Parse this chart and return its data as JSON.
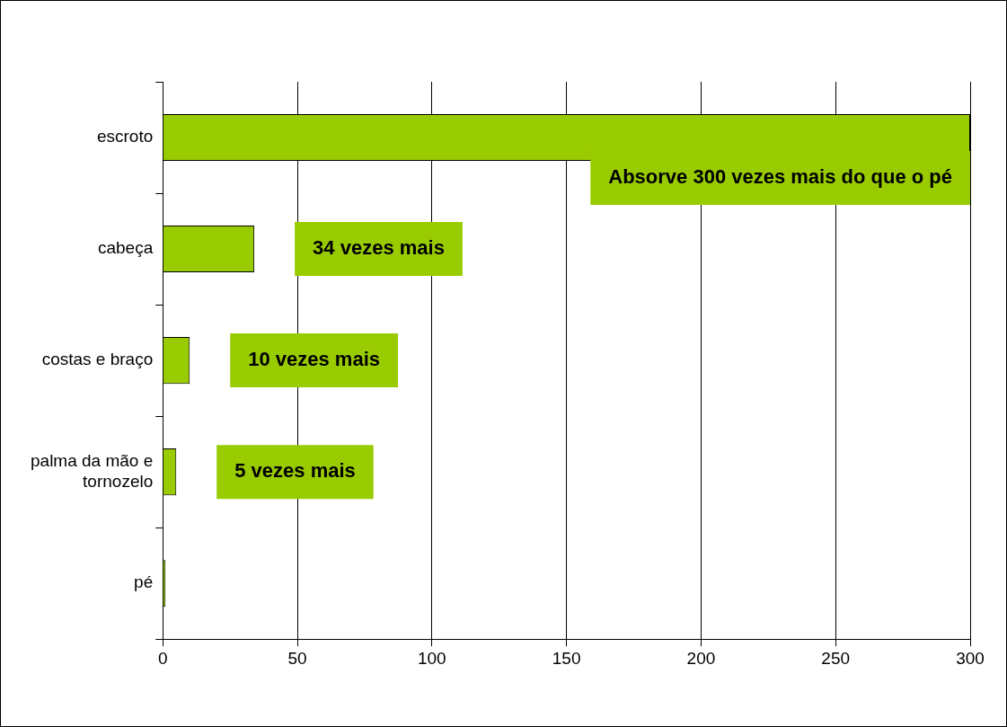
{
  "chart_data": {
    "type": "bar",
    "orientation": "horizontal",
    "categories": [
      "escroto",
      "cabeça",
      "costas e braço",
      "palma da mão e tornozelo",
      "pé"
    ],
    "values": [
      300,
      34,
      10,
      5,
      1
    ],
    "color": "#99cc00",
    "xlim": [
      0,
      300
    ],
    "xticks": [
      0,
      50,
      100,
      150,
      200,
      250,
      300
    ],
    "grid": "x",
    "legend": false,
    "annotations": [
      "Absorve 300 vezes mais do que o pé",
      "34 vezes mais",
      "10 vezes mais",
      "5 vezes mais"
    ]
  }
}
